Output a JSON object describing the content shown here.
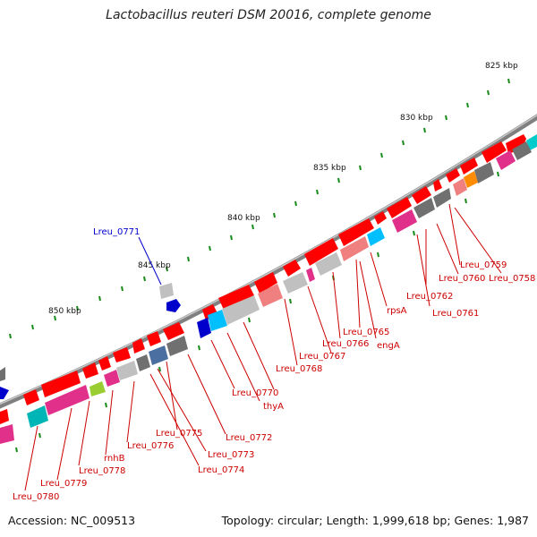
{
  "title": "Lactobacillus reuteri DSM 20016, complete genome",
  "footer": {
    "accession": "Accession: NC_009513",
    "stats": "Topology: circular; Length: 1,999,618 bp; Genes: 1,987"
  },
  "kbp_labels": [
    "825 kbp",
    "830 kbp",
    "835 kbp",
    "840 kbp",
    "845 kbp",
    "850 kbp"
  ],
  "gene_labels": [
    "Lreu_0771",
    "Lreu_0759",
    "Lreu_0758",
    "Lreu_0760",
    "Lreu_0762",
    "Lreu_0761",
    "rpsA",
    "Lreu_0765",
    "engA",
    "Lreu_0766",
    "Lreu_0767",
    "Lreu_0768",
    "Lreu_0770",
    "thyA",
    "Lreu_0772",
    "Lreu_0775",
    "Lreu_0773",
    "Lreu_0774",
    "Lreu_0776",
    "rnhB",
    "Lreu_0778",
    "Lreu_0779",
    "Lreu_0780"
  ],
  "colors": {
    "cds": "#ff0000",
    "backbone": "#808080",
    "ticks": "#1a8a1a",
    "label_line": "#cc0000",
    "highlight_label": "#0000cc"
  }
}
